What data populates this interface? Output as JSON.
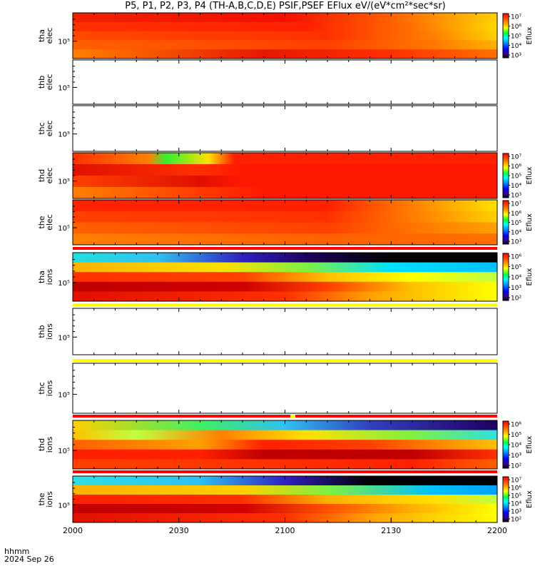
{
  "title": "P5, P1, P2, P3, P4 (TH-A,B,C,D,E) PSIF,PSEF EFlux eV/(eV*cm²*sec*sr)",
  "footer": {
    "line1": "hhmm",
    "line2": "2024 Sep 26"
  },
  "chart_data": {
    "type": "heatmap",
    "title": "P5, P1, P2, P3, P4 (TH-A,B,C,D,E) PSIF,PSEF EFlux eV/(eV*cm²*sec*sr)",
    "x_ticks": [
      "2000",
      "2030",
      "2100",
      "2130",
      "2200"
    ],
    "x_range": [
      "2000",
      "2200"
    ],
    "colorbar_label": "Eflux",
    "panels": [
      {
        "ylabel": [
          "tha",
          "elec"
        ],
        "ytick": "10⁵",
        "colorbar": [
          "10⁷",
          "10⁶",
          "10⁵",
          "10⁴",
          "10³"
        ],
        "has_data": true,
        "rows": [
          {
            "c": [
              [
                0,
                "#f02000"
              ],
              [
                0.5,
                "#f41000"
              ],
              [
                0.75,
                "#ff6000"
              ],
              [
                1,
                "#ffd000"
              ]
            ]
          },
          {
            "c": [
              [
                0,
                "#ff3000"
              ],
              [
                0.55,
                "#ff2000"
              ],
              [
                0.8,
                "#ff7000"
              ],
              [
                1,
                "#ffd800"
              ]
            ]
          },
          {
            "c": [
              [
                0,
                "#ff4800"
              ],
              [
                0.6,
                "#ff3000"
              ],
              [
                0.85,
                "#ff8000"
              ],
              [
                1,
                "#ffd000"
              ]
            ]
          },
          {
            "c": [
              [
                0,
                "#ff6000"
              ],
              [
                0.6,
                "#ff4000"
              ],
              [
                0.85,
                "#ff7800"
              ],
              [
                1,
                "#ffb000"
              ]
            ]
          },
          {
            "c": [
              [
                0,
                "#ff8000"
              ],
              [
                0.45,
                "#e81800"
              ],
              [
                0.75,
                "#ff3000"
              ],
              [
                1,
                "#ff7000"
              ]
            ]
          }
        ]
      },
      {
        "ylabel": [
          "thb",
          "elec"
        ],
        "ytick": "10⁵",
        "has_data": false
      },
      {
        "ylabel": [
          "thc",
          "elec"
        ],
        "ytick": "10⁵",
        "has_data": false
      },
      {
        "ylabel": [
          "thd",
          "elec"
        ],
        "ytick": "10⁵",
        "colorbar": [
          "10⁷",
          "10⁶",
          "10⁵",
          "10⁴",
          "10³"
        ],
        "has_data": true,
        "rows": [
          {
            "c": [
              [
                0,
                "#ff3000"
              ],
              [
                0.18,
                "#ff8000"
              ],
              [
                0.22,
                "#30f030"
              ],
              [
                0.32,
                "#ffe000"
              ],
              [
                0.38,
                "#ff2000"
              ],
              [
                1,
                "#ff2000"
              ]
            ]
          },
          {
            "c": [
              [
                0,
                "#e01000"
              ],
              [
                0.3,
                "#ff3000"
              ],
              [
                0.4,
                "#ff1800"
              ],
              [
                1,
                "#ff1800"
              ]
            ]
          },
          {
            "c": [
              [
                0,
                "#ff4000"
              ],
              [
                0.3,
                "#e01000"
              ],
              [
                0.4,
                "#ff1800"
              ],
              [
                1,
                "#ff1800"
              ]
            ]
          },
          {
            "c": [
              [
                0,
                "#ff8000"
              ],
              [
                0.35,
                "#ff3000"
              ],
              [
                0.45,
                "#ff1800"
              ],
              [
                1,
                "#ff1800"
              ]
            ]
          }
        ]
      },
      {
        "ylabel": [
          "the",
          "elec"
        ],
        "ytick": "10⁵",
        "colorbar": [
          "10⁷",
          "10⁶",
          "10⁵",
          "10⁴",
          "10³"
        ],
        "has_data": true,
        "rows": [
          {
            "c": [
              [
                0,
                "#ff2000"
              ],
              [
                0.6,
                "#ff2000"
              ],
              [
                0.8,
                "#ff8000"
              ],
              [
                1,
                "#ffe000"
              ]
            ]
          },
          {
            "c": [
              [
                0,
                "#ff4000"
              ],
              [
                0.6,
                "#ff3000"
              ],
              [
                0.85,
                "#ff9000"
              ],
              [
                1,
                "#ffd000"
              ]
            ]
          },
          {
            "c": [
              [
                0,
                "#ff6000"
              ],
              [
                0.6,
                "#ff4000"
              ],
              [
                0.85,
                "#ff8000"
              ],
              [
                1,
                "#ffa000"
              ]
            ]
          },
          {
            "c": [
              [
                0,
                "#ff8000"
              ],
              [
                0.6,
                "#ff6000"
              ],
              [
                1,
                "#ff7000"
              ]
            ]
          }
        ]
      },
      {
        "ylabel": [
          "tha",
          "ions"
        ],
        "ytick": "10⁵",
        "colorbar": [
          "10⁶",
          "10⁵",
          "10⁴",
          "10³",
          "10²"
        ],
        "has_data": true,
        "rows": [
          {
            "c": [
              [
                0,
                "#20e0e0"
              ],
              [
                0.2,
                "#30c0f0"
              ],
              [
                0.4,
                "#3020c0"
              ],
              [
                0.55,
                "#200060"
              ],
              [
                0.75,
                "#000000"
              ],
              [
                1,
                "#000000"
              ]
            ]
          },
          {
            "c": [
              [
                0,
                "#ffb000"
              ],
              [
                0.35,
                "#ffe000"
              ],
              [
                0.55,
                "#80f040"
              ],
              [
                0.75,
                "#00e0ff"
              ],
              [
                1,
                "#00c0ff"
              ]
            ]
          },
          {
            "c": [
              [
                0,
                "#ff3000"
              ],
              [
                0.4,
                "#ff4000"
              ],
              [
                0.6,
                "#ffc000"
              ],
              [
                0.8,
                "#ffff00"
              ],
              [
                1,
                "#c0ff40"
              ]
            ]
          },
          {
            "c": [
              [
                0,
                "#c00000"
              ],
              [
                0.4,
                "#d00000"
              ],
              [
                0.6,
                "#ff4000"
              ],
              [
                0.8,
                "#ffc000"
              ],
              [
                1,
                "#ffff00"
              ]
            ]
          },
          {
            "c": [
              [
                0,
                "#e01000"
              ],
              [
                0.5,
                "#ff3000"
              ],
              [
                0.7,
                "#ffa000"
              ],
              [
                1,
                "#ffff00"
              ]
            ]
          }
        ]
      },
      {
        "ylabel": [
          "thb",
          "ions"
        ],
        "ytick": "10⁵",
        "has_data": false
      },
      {
        "ylabel": [
          "thc",
          "ions"
        ],
        "ytick": "10⁵",
        "has_data": false
      },
      {
        "ylabel": [
          "thd",
          "ions"
        ],
        "ytick": "10⁵",
        "colorbar": [
          "10⁶",
          "10⁵",
          "10⁴",
          "10³",
          "10²"
        ],
        "has_data": true,
        "rows": [
          {
            "c": [
              [
                0,
                "#ffd000"
              ],
              [
                0.3,
                "#40f060"
              ],
              [
                0.5,
                "#30c0f0"
              ],
              [
                0.7,
                "#3040c0"
              ],
              [
                1,
                "#200060"
              ]
            ]
          },
          {
            "c": [
              [
                0,
                "#ffc000"
              ],
              [
                0.15,
                "#c0ff40"
              ],
              [
                0.35,
                "#ff8000"
              ],
              [
                0.55,
                "#ffe000"
              ],
              [
                0.8,
                "#80f040"
              ],
              [
                1,
                "#30e0e0"
              ]
            ]
          },
          {
            "c": [
              [
                0,
                "#ff6000"
              ],
              [
                0.3,
                "#ffa000"
              ],
              [
                0.45,
                "#ff2000"
              ],
              [
                0.7,
                "#ff4000"
              ],
              [
                1,
                "#ffc000"
              ]
            ]
          },
          {
            "c": [
              [
                0,
                "#ff2000"
              ],
              [
                0.3,
                "#ff2000"
              ],
              [
                0.45,
                "#c00000"
              ],
              [
                0.8,
                "#c00000"
              ],
              [
                1,
                "#ff3000"
              ]
            ]
          },
          {
            "c": [
              [
                0,
                "#ff4000"
              ],
              [
                0.5,
                "#ff3000"
              ],
              [
                0.8,
                "#ff2000"
              ],
              [
                1,
                "#ff6000"
              ]
            ]
          }
        ]
      },
      {
        "ylabel": [
          "the",
          "ions"
        ],
        "ytick": "10⁵",
        "colorbar": [
          "10⁷",
          "10⁶",
          "10⁵",
          "10⁴",
          "10³",
          "10²"
        ],
        "has_data": true,
        "rows": [
          {
            "c": [
              [
                0,
                "#30e0e0"
              ],
              [
                0.3,
                "#30c0f0"
              ],
              [
                0.5,
                "#3020c0"
              ],
              [
                0.7,
                "#000000"
              ],
              [
                1,
                "#000000"
              ]
            ]
          },
          {
            "c": [
              [
                0,
                "#ffb000"
              ],
              [
                0.4,
                "#ffd000"
              ],
              [
                0.6,
                "#80f040"
              ],
              [
                0.85,
                "#00c0ff"
              ],
              [
                1,
                "#00a0ff"
              ]
            ]
          },
          {
            "c": [
              [
                0,
                "#ff2000"
              ],
              [
                0.4,
                "#ff3000"
              ],
              [
                0.6,
                "#ffb000"
              ],
              [
                0.85,
                "#ffe000"
              ],
              [
                1,
                "#c0ff40"
              ]
            ]
          },
          {
            "c": [
              [
                0,
                "#c00000"
              ],
              [
                0.4,
                "#d00000"
              ],
              [
                0.6,
                "#ff5000"
              ],
              [
                0.8,
                "#ffb000"
              ],
              [
                1,
                "#ffff00"
              ]
            ]
          },
          {
            "c": [
              [
                0,
                "#e01000"
              ],
              [
                0.5,
                "#ff3000"
              ],
              [
                0.7,
                "#ffa000"
              ],
              [
                1,
                "#ffff00"
              ]
            ]
          }
        ]
      }
    ],
    "separators": [
      {
        "after_panel": 4,
        "color": "#ff0000"
      },
      {
        "after_panel": 5,
        "color": "#ffff00"
      },
      {
        "after_panel": 6,
        "color": "#ffff00"
      },
      {
        "after_panel": 7,
        "color": "#ff0000"
      },
      {
        "after_panel": 8,
        "color": "#ff0000"
      }
    ]
  }
}
